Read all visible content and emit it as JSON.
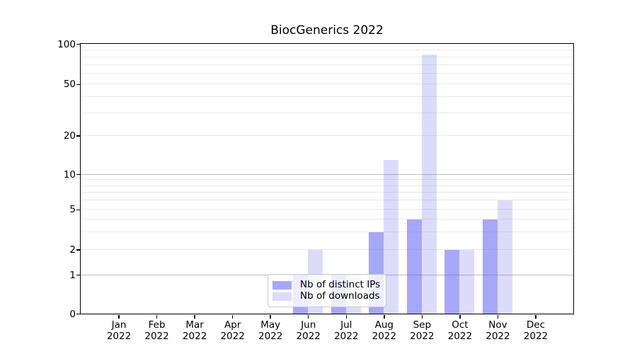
{
  "title": "BiocGenerics 2022",
  "colors": {
    "background": "#ffffff",
    "axis": "#000000",
    "text": "#000000",
    "ips_bar": "rgba(95,95,240,0.55)",
    "downloads_bar": "rgba(80,80,230,0.2)",
    "grid_major": "#bdbdbd",
    "grid_minor": "#e9e9e9",
    "legend_border": "#c9c9c9"
  },
  "chart_data": {
    "type": "bar",
    "title": "BiocGenerics 2022",
    "categories": [
      "Jan 2022",
      "Feb 2022",
      "Mar 2022",
      "Apr 2022",
      "May 2022",
      "Jun 2022",
      "Jul 2022",
      "Aug 2022",
      "Sep 2022",
      "Oct 2022",
      "Nov 2022",
      "Dec 2022"
    ],
    "series": [
      {
        "name": "Nb of distinct IPs",
        "color": "rgba(95,95,240,0.55)",
        "values": [
          0,
          0,
          0,
          0,
          0,
          1,
          1,
          3,
          4,
          2,
          4,
          0
        ]
      },
      {
        "name": "Nb of downloads",
        "color": "rgba(80,80,230,0.2)",
        "values": [
          0,
          0,
          0,
          0,
          0,
          2,
          1,
          13,
          83,
          2,
          6,
          0
        ]
      }
    ],
    "xlabel": "",
    "ylabel": "",
    "ylim": [
      0,
      100
    ],
    "yscale": "symlog-like",
    "yticks": [
      0,
      1,
      2,
      5,
      10,
      20,
      50,
      100
    ],
    "y_anchors": [
      {
        "v": 0,
        "f": 0
      },
      {
        "v": 1,
        "f": 0.144
      },
      {
        "v": 2,
        "f": 0.237
      },
      {
        "v": 5,
        "f": 0.386
      },
      {
        "v": 10,
        "f": 0.5165
      },
      {
        "v": 20,
        "f": 0.66
      },
      {
        "v": 50,
        "f": 0.851
      },
      {
        "v": 100,
        "f": 1.0
      }
    ],
    "grid": {
      "major_values": [
        1,
        10
      ],
      "minor_values": [
        2,
        3,
        4,
        5,
        6,
        7,
        8,
        9,
        20,
        30,
        40,
        50,
        60,
        70,
        80,
        90
      ]
    },
    "legend": {
      "position": "lower center",
      "entries": [
        "Nb of distinct IPs",
        "Nb of downloads"
      ]
    }
  }
}
